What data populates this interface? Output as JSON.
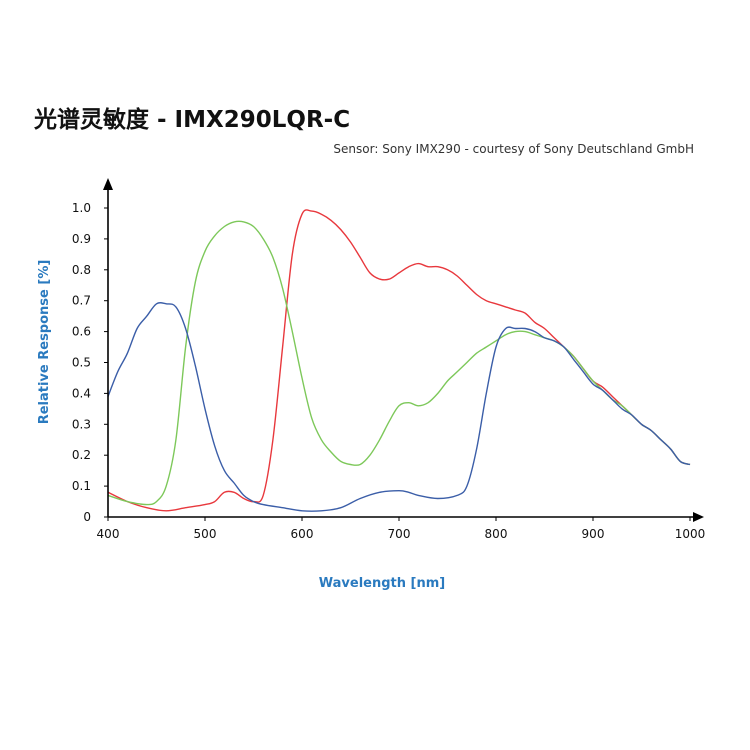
{
  "title": "光谱灵敏度 - IMX290LQR-C",
  "subtitle": "Sensor: Sony IMX290 - courtesy of Sony Deutschland GmbH",
  "colors": {
    "red": "#e8383d",
    "green": "#7dc85a",
    "blue": "#3b5ea8",
    "axis_title": "#2a7abf"
  },
  "chart_data": {
    "type": "line",
    "title": "光谱灵敏度 - IMX290LQR-C",
    "subtitle": "Sensor: Sony IMX290 - courtesy of Sony Deutschland GmbH",
    "xlabel": "Wavelength [nm]",
    "ylabel": "Relative Response [%]",
    "xlim": [
      400,
      1000
    ],
    "ylim": [
      0,
      1.0
    ],
    "x_ticks": [
      "400",
      "500",
      "600",
      "700",
      "800",
      "900",
      "1000"
    ],
    "y_ticks": [
      "0",
      "0.1",
      "0.2",
      "0.3",
      "0.4",
      "0.5",
      "0.6",
      "0.7",
      "0.8",
      "0.9",
      "1.0"
    ],
    "grid": false,
    "legend": "none",
    "series": [
      {
        "color": "#e8383d",
        "points": [
          [
            400,
            0.08
          ],
          [
            420,
            0.05
          ],
          [
            440,
            0.03
          ],
          [
            460,
            0.02
          ],
          [
            480,
            0.03
          ],
          [
            500,
            0.04
          ],
          [
            510,
            0.05
          ],
          [
            520,
            0.08
          ],
          [
            530,
            0.08
          ],
          [
            540,
            0.06
          ],
          [
            550,
            0.05
          ],
          [
            560,
            0.07
          ],
          [
            570,
            0.25
          ],
          [
            580,
            0.55
          ],
          [
            590,
            0.85
          ],
          [
            600,
            0.98
          ],
          [
            610,
            0.99
          ],
          [
            620,
            0.98
          ],
          [
            630,
            0.96
          ],
          [
            640,
            0.93
          ],
          [
            650,
            0.89
          ],
          [
            660,
            0.84
          ],
          [
            670,
            0.79
          ],
          [
            680,
            0.77
          ],
          [
            690,
            0.77
          ],
          [
            700,
            0.79
          ],
          [
            710,
            0.81
          ],
          [
            720,
            0.82
          ],
          [
            730,
            0.81
          ],
          [
            740,
            0.81
          ],
          [
            750,
            0.8
          ],
          [
            760,
            0.78
          ],
          [
            770,
            0.75
          ],
          [
            780,
            0.72
          ],
          [
            790,
            0.7
          ],
          [
            800,
            0.69
          ],
          [
            810,
            0.68
          ],
          [
            820,
            0.67
          ],
          [
            830,
            0.66
          ],
          [
            840,
            0.63
          ],
          [
            850,
            0.61
          ],
          [
            860,
            0.58
          ],
          [
            870,
            0.55
          ],
          [
            880,
            0.52
          ],
          [
            890,
            0.48
          ],
          [
            900,
            0.44
          ],
          [
            910,
            0.42
          ],
          [
            920,
            0.39
          ],
          [
            930,
            0.36
          ],
          [
            940,
            0.33
          ],
          [
            950,
            0.3
          ],
          [
            960,
            0.28
          ],
          [
            970,
            0.25
          ],
          [
            980,
            0.22
          ],
          [
            990,
            0.18
          ],
          [
            1000,
            0.17
          ]
        ]
      },
      {
        "color": "#7dc85a",
        "points": [
          [
            400,
            0.07
          ],
          [
            420,
            0.05
          ],
          [
            440,
            0.04
          ],
          [
            450,
            0.05
          ],
          [
            460,
            0.1
          ],
          [
            470,
            0.25
          ],
          [
            480,
            0.55
          ],
          [
            490,
            0.76
          ],
          [
            500,
            0.86
          ],
          [
            510,
            0.91
          ],
          [
            520,
            0.94
          ],
          [
            530,
            0.955
          ],
          [
            540,
            0.955
          ],
          [
            550,
            0.94
          ],
          [
            560,
            0.9
          ],
          [
            570,
            0.84
          ],
          [
            580,
            0.74
          ],
          [
            590,
            0.6
          ],
          [
            600,
            0.45
          ],
          [
            610,
            0.32
          ],
          [
            620,
            0.25
          ],
          [
            630,
            0.21
          ],
          [
            640,
            0.18
          ],
          [
            650,
            0.17
          ],
          [
            660,
            0.17
          ],
          [
            670,
            0.2
          ],
          [
            680,
            0.25
          ],
          [
            690,
            0.31
          ],
          [
            700,
            0.36
          ],
          [
            710,
            0.37
          ],
          [
            720,
            0.36
          ],
          [
            730,
            0.37
          ],
          [
            740,
            0.4
          ],
          [
            750,
            0.44
          ],
          [
            760,
            0.47
          ],
          [
            770,
            0.5
          ],
          [
            780,
            0.53
          ],
          [
            790,
            0.55
          ],
          [
            800,
            0.57
          ],
          [
            810,
            0.59
          ],
          [
            820,
            0.6
          ],
          [
            830,
            0.6
          ],
          [
            840,
            0.59
          ],
          [
            850,
            0.58
          ],
          [
            860,
            0.57
          ],
          [
            870,
            0.55
          ],
          [
            880,
            0.52
          ],
          [
            890,
            0.48
          ],
          [
            900,
            0.44
          ],
          [
            910,
            0.41
          ],
          [
            920,
            0.38
          ],
          [
            930,
            0.36
          ],
          [
            940,
            0.33
          ],
          [
            950,
            0.3
          ],
          [
            960,
            0.28
          ],
          [
            970,
            0.25
          ],
          [
            980,
            0.22
          ],
          [
            990,
            0.18
          ],
          [
            1000,
            0.17
          ]
        ]
      },
      {
        "color": "#3b5ea8",
        "points": [
          [
            400,
            0.39
          ],
          [
            410,
            0.47
          ],
          [
            420,
            0.53
          ],
          [
            430,
            0.61
          ],
          [
            440,
            0.65
          ],
          [
            450,
            0.69
          ],
          [
            460,
            0.69
          ],
          [
            470,
            0.68
          ],
          [
            480,
            0.61
          ],
          [
            490,
            0.49
          ],
          [
            500,
            0.35
          ],
          [
            510,
            0.23
          ],
          [
            520,
            0.15
          ],
          [
            530,
            0.11
          ],
          [
            540,
            0.07
          ],
          [
            550,
            0.05
          ],
          [
            560,
            0.04
          ],
          [
            580,
            0.03
          ],
          [
            600,
            0.02
          ],
          [
            620,
            0.02
          ],
          [
            640,
            0.03
          ],
          [
            660,
            0.06
          ],
          [
            680,
            0.08
          ],
          [
            700,
            0.085
          ],
          [
            710,
            0.08
          ],
          [
            720,
            0.07
          ],
          [
            740,
            0.06
          ],
          [
            760,
            0.07
          ],
          [
            770,
            0.1
          ],
          [
            780,
            0.22
          ],
          [
            790,
            0.4
          ],
          [
            800,
            0.55
          ],
          [
            810,
            0.61
          ],
          [
            820,
            0.61
          ],
          [
            830,
            0.61
          ],
          [
            840,
            0.6
          ],
          [
            850,
            0.58
          ],
          [
            860,
            0.57
          ],
          [
            870,
            0.55
          ],
          [
            880,
            0.51
          ],
          [
            890,
            0.47
          ],
          [
            900,
            0.43
          ],
          [
            910,
            0.41
          ],
          [
            920,
            0.38
          ],
          [
            930,
            0.35
          ],
          [
            940,
            0.33
          ],
          [
            950,
            0.3
          ],
          [
            960,
            0.28
          ],
          [
            970,
            0.25
          ],
          [
            980,
            0.22
          ],
          [
            990,
            0.18
          ],
          [
            1000,
            0.17
          ]
        ]
      }
    ]
  }
}
